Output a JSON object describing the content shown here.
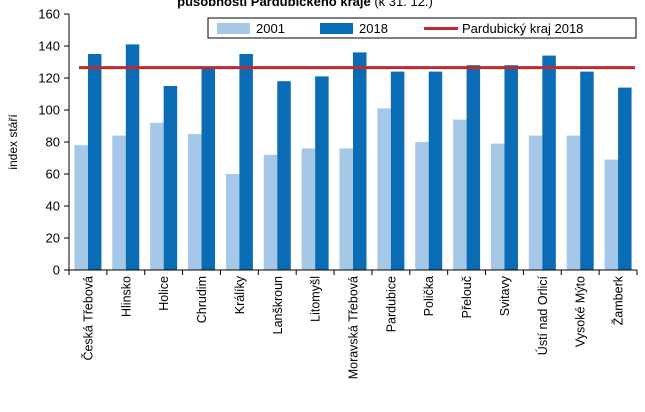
{
  "chart_data": {
    "type": "bar",
    "title_bold": "působnosti Pardubického kraje",
    "title_rest": " (k 31. 12.)",
    "ylabel": "index stáří",
    "ylim": [
      0,
      160
    ],
    "yticks": [
      0,
      20,
      40,
      60,
      80,
      100,
      120,
      140,
      160
    ],
    "categories": [
      "Česká Třebová",
      "Hlinsko",
      "Holice",
      "Chrudim",
      "Králíky",
      "Lanškroun",
      "Litomyšl",
      "Moravská Třebová",
      "Pardubice",
      "Polička",
      "Přelouč",
      "Svitavy",
      "Ústí nad Orlicí",
      "Vysoké Mýto",
      "Žamberk"
    ],
    "series": [
      {
        "name": "2001",
        "color": "#a6c8e8",
        "values": [
          78,
          84,
          92,
          85,
          60,
          72,
          76,
          76,
          101,
          80,
          94,
          79,
          84,
          84,
          69
        ]
      },
      {
        "name": "2018",
        "color": "#0a6cb4",
        "values": [
          135,
          141,
          115,
          127,
          135,
          118,
          121,
          136,
          124,
          124,
          128,
          128,
          134,
          124,
          114
        ]
      }
    ],
    "reference_line": {
      "name": "Pardubický kraj 2018",
      "value": 126.5,
      "color": "#c0282e"
    },
    "legend_position": "top-right",
    "grid": false
  }
}
